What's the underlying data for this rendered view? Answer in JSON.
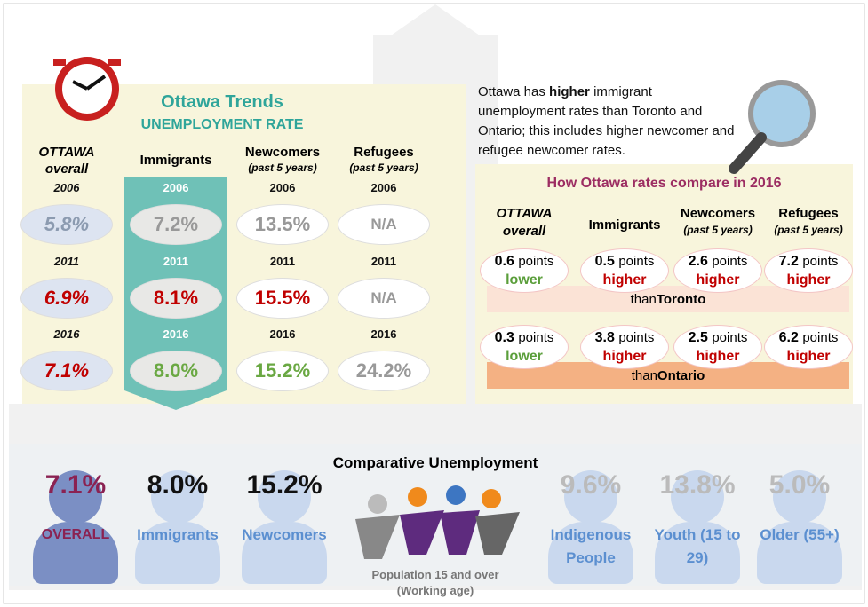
{
  "trends": {
    "title": "Ottawa Trends",
    "subtitle": "UNEMPLOYMENT RATE",
    "columns": [
      {
        "name": "OTTAWA",
        "sub": "overall",
        "cells": [
          {
            "year": "2006",
            "value": "5.8%"
          },
          {
            "year": "2011",
            "value": "6.9%"
          },
          {
            "year": "2016",
            "value": "7.1%"
          }
        ]
      },
      {
        "name": "Immigrants",
        "cells": [
          {
            "year": "2006",
            "value": "7.2%"
          },
          {
            "year": "2011",
            "value": "8.1%"
          },
          {
            "year": "2016",
            "value": "8.0%"
          }
        ]
      },
      {
        "name": "Newcomers",
        "sub": "(past 5 years)",
        "cells": [
          {
            "year": "2006",
            "value": "13.5%"
          },
          {
            "year": "2011",
            "value": "15.5%"
          },
          {
            "year": "2016",
            "value": "15.2%"
          }
        ]
      },
      {
        "name": "Refugees",
        "sub": "(past 5 years)",
        "cells": [
          {
            "year": "2006",
            "value": "N/A"
          },
          {
            "year": "2011",
            "value": "N/A"
          },
          {
            "year": "2016",
            "value": "24.2%"
          }
        ]
      }
    ]
  },
  "summary": {
    "parts": [
      "Ottawa has",
      "higher",
      "immigrant unemployment rates than Toronto and Ontario; this includes higher newcomer and refugee newcomer rates."
    ]
  },
  "comparison": {
    "title": "How Ottawa rates compare in 2016",
    "columns": [
      {
        "name": "OTTAWA",
        "sub": "overall"
      },
      {
        "name": "Immigrants"
      },
      {
        "name": "Newcomers",
        "sub": "(past 5 years)"
      },
      {
        "name": "Refugees",
        "sub": "(past 5 years)"
      }
    ],
    "rows": [
      {
        "prefix": "than",
        "place": "Toronto",
        "cells": [
          {
            "amount": "0.6",
            "unit": "points",
            "direction": "lower"
          },
          {
            "amount": "0.5",
            "unit": "points",
            "direction": "higher"
          },
          {
            "amount": "2.6",
            "unit": "points",
            "direction": "higher"
          },
          {
            "amount": "7.2",
            "unit": "points",
            "direction": "higher"
          }
        ]
      },
      {
        "prefix": "than",
        "place": "Ontario",
        "cells": [
          {
            "amount": "0.3",
            "unit": "points",
            "direction": "lower"
          },
          {
            "amount": "3.8",
            "unit": "points",
            "direction": "higher"
          },
          {
            "amount": "2.5",
            "unit": "points",
            "direction": "higher"
          },
          {
            "amount": "6.2",
            "unit": "points",
            "direction": "higher"
          }
        ]
      }
    ]
  },
  "bottom": {
    "title": "Comparative Unemployment",
    "groups": [
      {
        "value": "7.1%",
        "label": "OVERALL"
      },
      {
        "value": "8.0%",
        "label": "Immigrants"
      },
      {
        "value": "15.2%",
        "label": "Newcomers"
      },
      {
        "value": "9.6%",
        "label": "Indigenous People"
      },
      {
        "value": "13.8%",
        "label": "Youth (15 to 29)"
      },
      {
        "value": "5.0%",
        "label": "Older (55+)"
      }
    ],
    "caption": [
      "Population 15 and over",
      "(Working age)"
    ]
  }
}
